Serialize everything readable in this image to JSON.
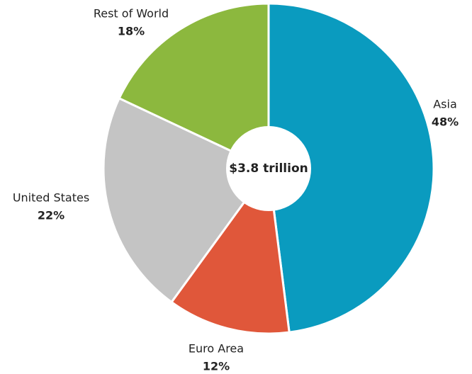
{
  "chart_data": {
    "type": "pie",
    "categories": [
      "Asia",
      "Euro Area",
      "United States",
      "Rest of World"
    ],
    "values": [
      48,
      12,
      22,
      18
    ],
    "value_labels": [
      "48%",
      "12%",
      "22%",
      "18%"
    ],
    "colors": [
      "#0a9bbf",
      "#e0573a",
      "#c4c4c4",
      "#8cb83e"
    ],
    "center_label": "$3.8 trillion"
  }
}
